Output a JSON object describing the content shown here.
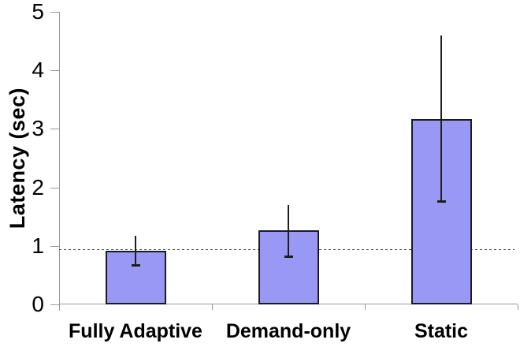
{
  "chart_data": {
    "type": "bar",
    "title": "",
    "categories": [
      "Fully Adaptive",
      "Demand-only",
      "Static"
    ],
    "values": [
      0.91,
      1.27,
      3.17
    ],
    "error_upper": [
      1.17,
      1.7,
      4.6
    ],
    "error_lower": [
      0.67,
      0.82,
      1.77
    ],
    "reference_line_y": 0.95,
    "ylabel": "Latency (sec)",
    "xlabel": "",
    "ylim": [
      0,
      5
    ],
    "yticks": [
      0,
      1,
      2,
      3,
      4,
      5
    ],
    "grid": false,
    "legend": "none",
    "colors": {
      "bar_fill": "#9999F5",
      "bar_border": "#1a1a26",
      "error_bar": "#1e1e1e",
      "axis": "#999999",
      "reference_line": "#4d4d4d",
      "text": "#000000",
      "background": "#ffffff"
    }
  }
}
